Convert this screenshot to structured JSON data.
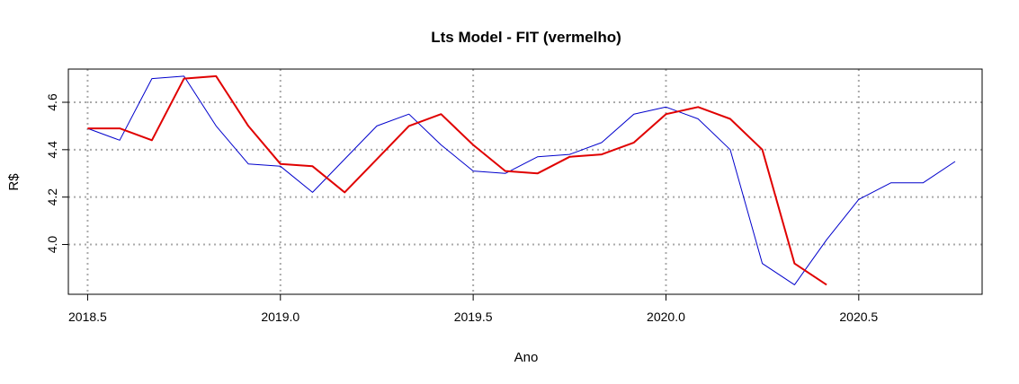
{
  "chart_data": {
    "type": "line",
    "title": "Lts Model - FIT (vermelho)",
    "xlabel": "Ano",
    "ylabel": "R$",
    "xlim": [
      2018.45,
      2020.82
    ],
    "ylim": [
      3.79,
      4.74
    ],
    "x_ticks": [
      2018.5,
      2019.0,
      2019.5,
      2020.0,
      2020.5
    ],
    "x_tick_labels": [
      "2018.5",
      "2019.0",
      "2019.5",
      "2020.0",
      "2020.5"
    ],
    "y_ticks": [
      4.0,
      4.2,
      4.4,
      4.6
    ],
    "y_tick_labels": [
      "4.0",
      "4.2",
      "4.4",
      "4.6"
    ],
    "grid": true,
    "legend": "none",
    "series": [
      {
        "color": "#0000cc",
        "width": 1,
        "x": [
          2018.5,
          2018.5833,
          2018.6667,
          2018.75,
          2018.8333,
          2018.9167,
          2019.0,
          2019.0833,
          2019.1667,
          2019.25,
          2019.3333,
          2019.4167,
          2019.5,
          2019.5833,
          2019.6667,
          2019.75,
          2019.8333,
          2019.9167,
          2020.0,
          2020.0833,
          2020.1667,
          2020.25,
          2020.3333,
          2020.4167,
          2020.5,
          2020.5833,
          2020.6667,
          2020.75
        ],
        "y": [
          4.49,
          4.44,
          4.7,
          4.71,
          4.5,
          4.34,
          4.33,
          4.22,
          4.36,
          4.5,
          4.55,
          4.42,
          4.31,
          4.3,
          4.37,
          4.38,
          4.43,
          4.55,
          4.58,
          4.53,
          4.4,
          3.92,
          3.83,
          4.02,
          4.19,
          4.26,
          4.26,
          4.35
        ]
      },
      {
        "color": "#e00000",
        "width": 2,
        "x": [
          2018.5,
          2018.5833,
          2018.6667,
          2018.75,
          2018.8333,
          2018.9167,
          2019.0,
          2019.0833,
          2019.1667,
          2019.25,
          2019.3333,
          2019.4167,
          2019.5,
          2019.5833,
          2019.6667,
          2019.75,
          2019.8333,
          2019.9167,
          2020.0,
          2020.0833,
          2020.1667,
          2020.25,
          2020.3333,
          2020.4167
        ],
        "y": [
          4.49,
          4.49,
          4.44,
          4.7,
          4.71,
          4.5,
          4.34,
          4.33,
          4.22,
          4.36,
          4.5,
          4.55,
          4.42,
          4.31,
          4.3,
          4.37,
          4.38,
          4.43,
          4.55,
          4.58,
          4.53,
          4.4,
          3.92,
          3.83
        ]
      }
    ]
  }
}
